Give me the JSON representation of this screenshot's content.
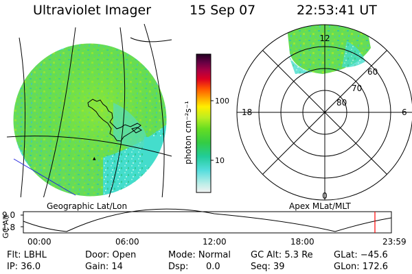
{
  "header": {
    "instrument": "Ultraviolet Imager",
    "date": "15 Sep 07",
    "time": "22:53:41 UT"
  },
  "images": {
    "left_label": "Geographic Lat/Lon",
    "right_label": "Apex MLat/MLT"
  },
  "colorbar": {
    "unit_label": "photon cm⁻²s⁻¹",
    "ticks": [
      "100",
      "10"
    ]
  },
  "polar_plot": {
    "mlt_labels": {
      "top": "12",
      "left": "18",
      "right": "6",
      "bottom": "0"
    },
    "lat_labels": [
      "60",
      "70",
      "80"
    ]
  },
  "altitude_plot": {
    "ylabel": "GC Alt",
    "y_ticks": [
      "9.0",
      "1.8"
    ],
    "x_ticks": [
      "00:00",
      "06:00",
      "12:00",
      "18:00",
      "23:59"
    ],
    "marker_color": "#ff0000"
  },
  "status": {
    "filter": "Flt: LBHL",
    "ip": "IP: 36.0",
    "door": "Door: Open",
    "gain": "Gain: 14",
    "mode": "Mode: Normal",
    "dsp_label": "Dsp:",
    "dsp_value": "0.0",
    "gc_alt": "GC Alt: 5.3 Re",
    "seq": "Seq: 39",
    "glat": "GLat: −45.6",
    "glon": "GLon: 172.6"
  }
}
